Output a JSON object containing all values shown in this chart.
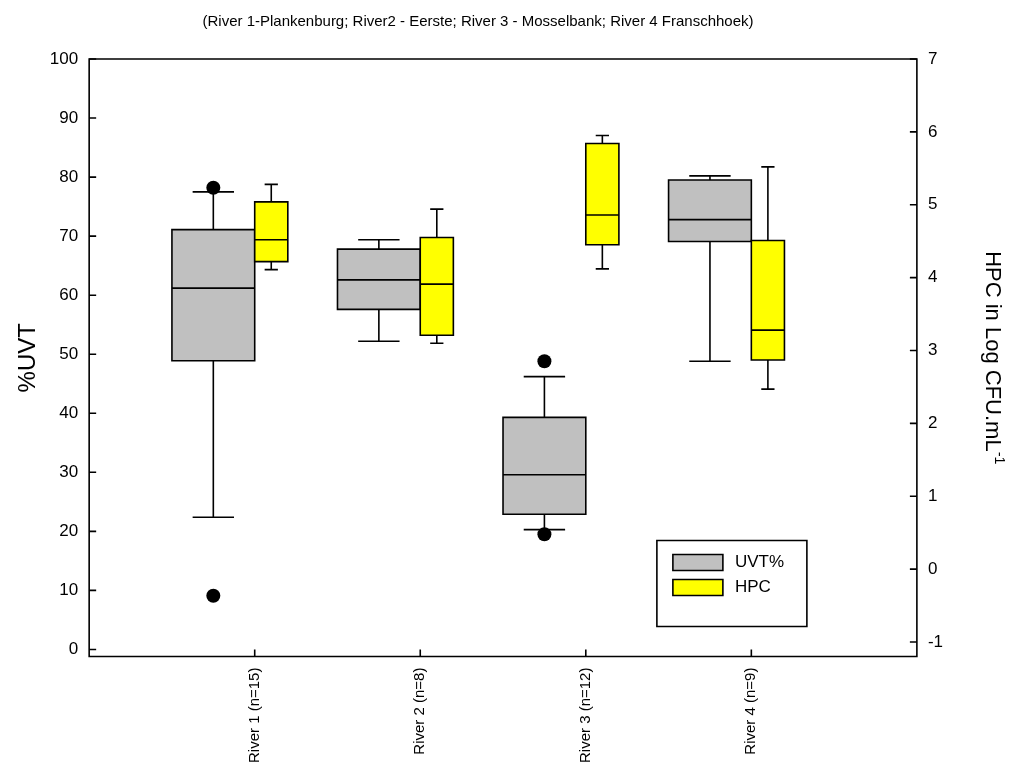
{
  "chart_data": {
    "type": "box",
    "title": "(River 1-Plankenburg; River2 - Eerste; River 3 - Mosselbank; River 4 Franschhoek)",
    "ylabel": "%UVT",
    "y2label": "HPC in Log CFU.mL$^{-1}$",
    "categories": [
      "River 1 (n=15)",
      "River 2 (n=8)",
      "River 3 (n=12)",
      "River 4 (n=9)"
    ],
    "series": [
      {
        "name": "UVT%",
        "color": "#c0c0c0",
        "boxes": [
          {
            "low": 22.4,
            "q1": 48.9,
            "median": 61.2,
            "q3": 71.1,
            "high": 77.5,
            "outliers": [
              78.2,
              9.1
            ]
          },
          {
            "low": 52.2,
            "q1": 57.6,
            "median": 62.6,
            "q3": 67.8,
            "high": 69.4
          },
          {
            "low": 20.3,
            "q1": 22.9,
            "median": 29.6,
            "q3": 39.3,
            "high": 46.2,
            "outliers": [
              48.8,
              19.5
            ]
          },
          {
            "low": 48.8,
            "q1": 69.1,
            "median": 72.8,
            "q3": 79.5,
            "high": 80.2
          }
        ]
      },
      {
        "name": "HPC",
        "color": "#ffff00",
        "axis": "y2",
        "boxes": [
          {
            "low": 4.11,
            "q1": 4.22,
            "median": 4.52,
            "q3": 5.04,
            "high": 5.28
          },
          {
            "low": 3.1,
            "q1": 3.21,
            "median": 3.91,
            "q3": 4.55,
            "high": 4.94
          },
          {
            "low": 4.12,
            "q1": 4.45,
            "median": 4.86,
            "q3": 5.84,
            "high": 5.95
          },
          {
            "low": 2.47,
            "q1": 2.87,
            "median": 3.28,
            "q3": 4.51,
            "high": 5.52
          }
        ]
      }
    ],
    "ylim": [
      -1.2,
      100
    ],
    "yticks": [
      0,
      10,
      20,
      30,
      40,
      50,
      60,
      70,
      80,
      90,
      100
    ],
    "y2lim": [
      -1.2,
      7
    ],
    "y2ticks": [
      -1,
      0,
      1,
      2,
      3,
      4,
      5,
      6,
      7
    ],
    "legend": "bottom right",
    "grid": false
  }
}
